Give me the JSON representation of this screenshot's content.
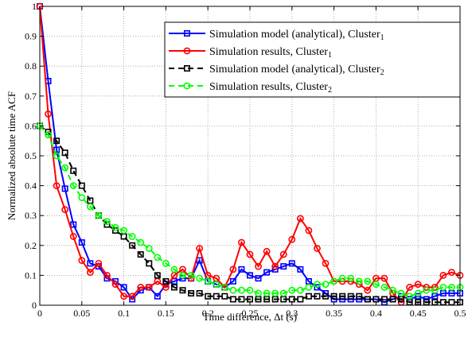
{
  "chart_data": {
    "type": "line",
    "title": "",
    "xlabel": "Time difference, Δt (s)",
    "ylabel": "Normalized absolute time ACF",
    "xlim": [
      0,
      0.5
    ],
    "ylim": [
      0,
      1
    ],
    "xticks": [
      "0",
      "0.05",
      "0.1",
      "0.15",
      "0.2",
      "0.25",
      "0.3",
      "0.35",
      "0.4",
      "0.45",
      "0.5"
    ],
    "yticks": [
      "0",
      "0.1",
      "0.2",
      "0.3",
      "0.4",
      "0.5",
      "0.6",
      "0.7",
      "0.8",
      "0.9",
      "1"
    ],
    "grid": true,
    "legend_position": "top-right",
    "series": [
      {
        "name": "Simulation model (analytical), Cluster",
        "name_sub": "1",
        "color": "#0000ff",
        "linestyle": "solid",
        "marker": "square",
        "x": [
          0,
          0.01,
          0.02,
          0.03,
          0.04,
          0.05,
          0.06,
          0.07,
          0.08,
          0.09,
          0.1,
          0.11,
          0.12,
          0.13,
          0.14,
          0.15,
          0.16,
          0.17,
          0.18,
          0.19,
          0.2,
          0.21,
          0.22,
          0.23,
          0.24,
          0.25,
          0.26,
          0.27,
          0.28,
          0.29,
          0.3,
          0.31,
          0.32,
          0.33,
          0.34,
          0.35,
          0.36,
          0.37,
          0.38,
          0.39,
          0.4,
          0.41,
          0.42,
          0.43,
          0.44,
          0.45,
          0.46,
          0.47,
          0.48,
          0.49,
          0.5
        ],
        "y": [
          1.0,
          0.75,
          0.52,
          0.39,
          0.27,
          0.21,
          0.14,
          0.13,
          0.09,
          0.08,
          0.06,
          0.02,
          0.05,
          0.06,
          0.03,
          0.07,
          0.08,
          0.09,
          0.09,
          0.15,
          0.08,
          0.07,
          0.06,
          0.08,
          0.12,
          0.1,
          0.09,
          0.11,
          0.12,
          0.13,
          0.14,
          0.12,
          0.08,
          0.06,
          0.04,
          0.02,
          0.02,
          0.02,
          0.02,
          0.02,
          0.02,
          0.01,
          0.02,
          0.03,
          0.02,
          0.03,
          0.02,
          0.03,
          0.04,
          0.04,
          0.04
        ]
      },
      {
        "name": "Simulation results, Cluster",
        "name_sub": "1",
        "color": "#ff0000",
        "linestyle": "solid",
        "marker": "circle",
        "x": [
          0,
          0.01,
          0.02,
          0.03,
          0.04,
          0.05,
          0.06,
          0.07,
          0.08,
          0.09,
          0.1,
          0.11,
          0.12,
          0.13,
          0.14,
          0.15,
          0.16,
          0.17,
          0.18,
          0.19,
          0.2,
          0.21,
          0.22,
          0.23,
          0.24,
          0.25,
          0.26,
          0.27,
          0.28,
          0.29,
          0.3,
          0.31,
          0.32,
          0.33,
          0.34,
          0.35,
          0.36,
          0.37,
          0.38,
          0.39,
          0.4,
          0.41,
          0.42,
          0.43,
          0.44,
          0.45,
          0.46,
          0.47,
          0.48,
          0.49,
          0.5
        ],
        "y": [
          1.0,
          0.64,
          0.4,
          0.32,
          0.23,
          0.15,
          0.11,
          0.14,
          0.1,
          0.07,
          0.03,
          0.03,
          0.06,
          0.06,
          0.08,
          0.06,
          0.1,
          0.12,
          0.09,
          0.19,
          0.1,
          0.09,
          0.06,
          0.12,
          0.21,
          0.17,
          0.13,
          0.18,
          0.13,
          0.17,
          0.22,
          0.29,
          0.25,
          0.19,
          0.14,
          0.08,
          0.08,
          0.08,
          0.07,
          0.05,
          0.09,
          0.09,
          0.04,
          0.01,
          0.06,
          0.07,
          0.06,
          0.06,
          0.1,
          0.11,
          0.1
        ]
      },
      {
        "name": "Simulation model (analytical), Cluster",
        "name_sub": "2",
        "color": "#000000",
        "linestyle": "dashed",
        "marker": "square",
        "x": [
          0,
          0.01,
          0.02,
          0.03,
          0.04,
          0.05,
          0.06,
          0.07,
          0.08,
          0.09,
          0.1,
          0.11,
          0.12,
          0.13,
          0.14,
          0.15,
          0.16,
          0.17,
          0.18,
          0.19,
          0.2,
          0.21,
          0.22,
          0.23,
          0.24,
          0.25,
          0.26,
          0.27,
          0.28,
          0.29,
          0.3,
          0.31,
          0.32,
          0.33,
          0.34,
          0.35,
          0.36,
          0.37,
          0.38,
          0.39,
          0.4,
          0.41,
          0.42,
          0.43,
          0.44,
          0.45,
          0.46,
          0.47,
          0.48,
          0.49,
          0.5
        ],
        "y": [
          0.6,
          0.58,
          0.55,
          0.51,
          0.45,
          0.4,
          0.35,
          0.3,
          0.27,
          0.25,
          0.23,
          0.2,
          0.17,
          0.14,
          0.1,
          0.08,
          0.06,
          0.05,
          0.04,
          0.04,
          0.03,
          0.03,
          0.03,
          0.02,
          0.02,
          0.02,
          0.02,
          0.02,
          0.02,
          0.02,
          0.02,
          0.02,
          0.03,
          0.03,
          0.03,
          0.03,
          0.03,
          0.03,
          0.03,
          0.02,
          0.02,
          0.02,
          0.02,
          0.02,
          0.01,
          0.01,
          0.01,
          0.01,
          0.01,
          0.01,
          0.01
        ]
      },
      {
        "name": "Simulation results, Cluster",
        "name_sub": "2",
        "color": "#00ff00",
        "linestyle": "dashed",
        "marker": "circle",
        "x": [
          0,
          0.01,
          0.02,
          0.03,
          0.04,
          0.05,
          0.06,
          0.07,
          0.08,
          0.09,
          0.1,
          0.11,
          0.12,
          0.13,
          0.14,
          0.15,
          0.16,
          0.17,
          0.18,
          0.19,
          0.2,
          0.21,
          0.22,
          0.23,
          0.24,
          0.25,
          0.26,
          0.27,
          0.28,
          0.29,
          0.3,
          0.31,
          0.32,
          0.33,
          0.34,
          0.35,
          0.36,
          0.37,
          0.38,
          0.39,
          0.4,
          0.41,
          0.42,
          0.43,
          0.44,
          0.45,
          0.46,
          0.47,
          0.48,
          0.49,
          0.5
        ],
        "y": [
          0.6,
          0.57,
          0.5,
          0.46,
          0.4,
          0.36,
          0.33,
          0.3,
          0.28,
          0.26,
          0.25,
          0.23,
          0.21,
          0.19,
          0.16,
          0.14,
          0.12,
          0.1,
          0.1,
          0.09,
          0.08,
          0.07,
          0.06,
          0.05,
          0.05,
          0.05,
          0.04,
          0.04,
          0.04,
          0.04,
          0.05,
          0.05,
          0.06,
          0.07,
          0.07,
          0.08,
          0.09,
          0.09,
          0.08,
          0.08,
          0.07,
          0.06,
          0.05,
          0.04,
          0.03,
          0.04,
          0.05,
          0.05,
          0.06,
          0.06,
          0.06
        ]
      }
    ]
  }
}
